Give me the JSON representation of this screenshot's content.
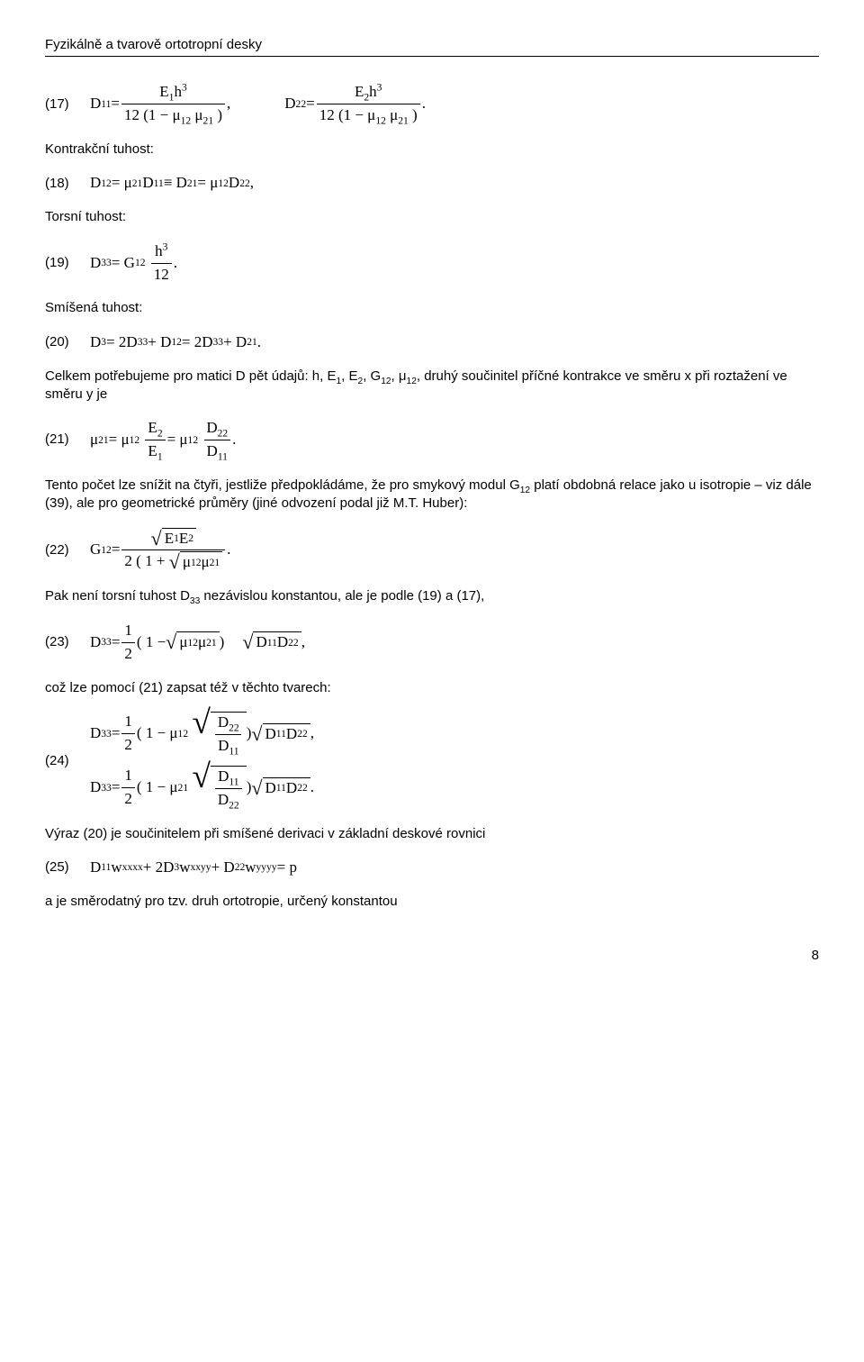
{
  "header": "Fyzikálně a tvarově ortotropní desky",
  "page_number": "8",
  "eq17": {
    "num": "(17)",
    "lhs1": "D",
    "sub1": "11",
    "eq": " = ",
    "f1_num_E": "E",
    "f1_num_sub": "1",
    "f1_num_h": "h",
    "f1_num_exp": "3",
    "f1_den": "12 (1 − μ",
    "f1_den_s1": "12",
    "f1_den_mid": " μ",
    "f1_den_s2": "21",
    "f1_den_end": " )",
    "sep": " ,",
    "lhs2": "D",
    "sub2": "22",
    "f2_num_E": "E",
    "f2_num_sub": "2",
    "f2_num_h": "h",
    "f2_num_exp": "3",
    "tail": " ."
  },
  "t_kontrak": "Kontrakční tuhost:",
  "eq18": {
    "num": "(18)",
    "body_a": "D",
    "s1": "12",
    "body_b": " = μ",
    "s2": "21",
    "body_c": " D",
    "s3": "11",
    "body_d": " ≡ D",
    "s4": "21",
    "body_e": " = μ",
    "s5": "12",
    "body_f": " D",
    "s6": "22",
    "tail": " ,"
  },
  "t_torsni": "Torsní tuhost:",
  "eq19": {
    "num": "(19)",
    "lhs": "D",
    "lhs_s": "33",
    "eq": " = G",
    "g_s": "12",
    "fnum_h": "h",
    "fnum_exp": "3",
    "fden": "12",
    "tail": " ."
  },
  "t_smisena": "Smíšená tuhost:",
  "eq20": {
    "num": "(20)",
    "a": "D",
    "s1": "3",
    "b": " = 2D",
    "s2": "33",
    "c": " + D",
    "s3": "12",
    "d": " = 2D",
    "s4": "33",
    "e": " + D",
    "s5": "21",
    "tail": "   ."
  },
  "p_celkem_a": "Celkem potřebujeme pro matici  D  pět údajů:  h, E",
  "p_celkem_s1": "1",
  "p_celkem_b": ", E",
  "p_celkem_s2": "2",
  "p_celkem_c": ", G",
  "p_celkem_s3": "12",
  "p_celkem_d": ", μ",
  "p_celkem_s4": "12",
  "p_celkem_e": ", druhý součinitel příčné kontrakce ve směru  x  při roztažení ve směru  y  je",
  "eq21": {
    "num": "(21)",
    "a": "μ",
    "s1": "21",
    "b": " = μ",
    "s2": "12",
    "f1n": "E",
    "f1n_s": "2",
    "f1d": "E",
    "f1d_s": "1",
    "c": " = μ",
    "s3": "12",
    "f2n": "D",
    "f2n_s": "22",
    "f2d": "D",
    "f2d_s": "11",
    "tail": "   ."
  },
  "p_tento_a": "Tento počet lze snížit na čtyři, jestliže předpokládáme, že pro smykový modul  G",
  "p_tento_s1": "12",
  "p_tento_b": "  platí obdobná relace jako u isotropie – viz dále (39), ale pro geometrické průměry (jiné odvození podal již M.T. Huber):",
  "eq22": {
    "num": "(22)",
    "lhs": "G",
    "lhs_s": "12",
    "eq": " = ",
    "rad_E1": "E",
    "rad_E1s": "1",
    "rad_E2": " E",
    "rad_E2s": "2",
    "den_a": "2 ( 1 + ",
    "den_mu1": "μ",
    "den_mu1s": "12",
    "den_mu2": " μ",
    "den_mu2s": "21",
    "tail": "   ."
  },
  "p_pak_a": "Pak není torsní tuhost  D",
  "p_pak_s": "33",
  "p_pak_b": "  nezávislou konstantou, ale je podle (19) a (17),",
  "eq23": {
    "num": "(23)",
    "lhs": "D",
    "lhs_s": "33",
    "eq": " = ",
    "half_n": "1",
    "half_d": "2",
    "paren_a": " ( 1 − ",
    "mu1": "μ",
    "mu1s": "12",
    "mu2": " μ",
    "mu2s": "21",
    "paren_b": " ) ",
    "rad_D1": "D",
    "rad_D1s": "11",
    "rad_D2": " D",
    "rad_D2s": "22",
    "tail": " ,"
  },
  "p_coz": "což lze pomocí (21) zapsat též v těchto tvarech:",
  "eq24": {
    "num": "(24)",
    "line1": {
      "lhs": "D",
      "lhs_s": "33",
      "eq": " = ",
      "half_n": "1",
      "half_d": "2",
      "paren_a": " ( 1 − μ",
      "mu_s": "12",
      "fr_n": "D",
      "fr_ns": "22",
      "fr_d": "D",
      "fr_ds": "11",
      "paren_b": " ) ",
      "rad_D1": "D",
      "rad_D1s": "11",
      "rad_D2": " D",
      "rad_D2s": "22",
      "tail": "    ,"
    },
    "line2": {
      "lhs": "D",
      "lhs_s": "33",
      "eq": " = ",
      "half_n": "1",
      "half_d": "2",
      "paren_a": " ( 1 − μ",
      "mu_s": "21",
      "fr_n": "D",
      "fr_ns": "11",
      "fr_d": "D",
      "fr_ds": "22",
      "paren_b": " ) ",
      "rad_D1": "D",
      "rad_D1s": "11",
      "rad_D2": " D",
      "rad_D2s": "22",
      "tail": "   ."
    }
  },
  "p_vyraz": "Výraz (20) je součinitelem při smíšené derivaci v základní deskové rovnici",
  "eq25": {
    "num": "(25)",
    "a": "D",
    "s1": "11",
    "b": " w",
    "ws1": "xxxx",
    "c": " + 2D",
    "s2": "3",
    "d": " w",
    "ws2": "xxyy",
    "e": " + D",
    "s3": "22",
    "f": " w",
    "ws3": "yyyy",
    "g": " = p"
  },
  "p_aje": "a je směrodatný pro tzv. druh ortotropie, určený konstantou"
}
